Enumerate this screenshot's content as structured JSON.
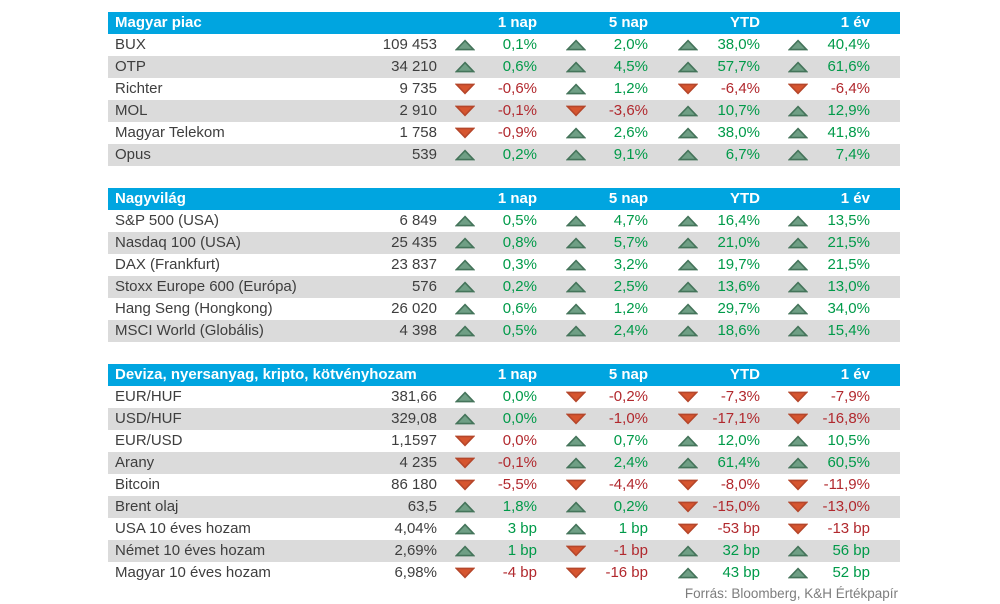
{
  "colors": {
    "header_bg": "#00a5e0",
    "row_alt_bg": "#dbdbdb",
    "text": "#3e3e3e",
    "positive_text": "#009a49",
    "negative_text": "#b1282d",
    "up_triangle_fill": "#6f9f85",
    "up_triangle_stroke": "#44745a",
    "down_triangle_fill": "#d6552f",
    "down_triangle_stroke": "#b5462a",
    "footer_text": "#7d7d7d"
  },
  "icons": {
    "up": "triangle-up",
    "down": "triangle-down"
  },
  "columns": [
    "1 nap",
    "5 nap",
    "YTD",
    "1 év"
  ],
  "chart_data": [
    {
      "type": "table",
      "title": "Magyar piac",
      "columns": [
        "1 nap",
        "5 nap",
        "YTD",
        "1 év"
      ],
      "rows": [
        {
          "name": "BUX",
          "value": "109 453",
          "changes": [
            {
              "dir": "up",
              "text": "0,1%"
            },
            {
              "dir": "up",
              "text": "2,0%"
            },
            {
              "dir": "up",
              "text": "38,0%"
            },
            {
              "dir": "up",
              "text": "40,4%"
            }
          ]
        },
        {
          "name": "OTP",
          "value": "34 210",
          "changes": [
            {
              "dir": "up",
              "text": "0,6%"
            },
            {
              "dir": "up",
              "text": "4,5%"
            },
            {
              "dir": "up",
              "text": "57,7%"
            },
            {
              "dir": "up",
              "text": "61,6%"
            }
          ]
        },
        {
          "name": "Richter",
          "value": "9 735",
          "changes": [
            {
              "dir": "down",
              "text": "-0,6%"
            },
            {
              "dir": "up",
              "text": "1,2%"
            },
            {
              "dir": "down",
              "text": "-6,4%"
            },
            {
              "dir": "down",
              "text": "-6,4%"
            }
          ]
        },
        {
          "name": "MOL",
          "value": "2 910",
          "changes": [
            {
              "dir": "down",
              "text": "-0,1%"
            },
            {
              "dir": "down",
              "text": "-3,6%"
            },
            {
              "dir": "up",
              "text": "10,7%"
            },
            {
              "dir": "up",
              "text": "12,9%"
            }
          ]
        },
        {
          "name": "Magyar Telekom",
          "value": "1 758",
          "changes": [
            {
              "dir": "down",
              "text": "-0,9%"
            },
            {
              "dir": "up",
              "text": "2,6%"
            },
            {
              "dir": "up",
              "text": "38,0%"
            },
            {
              "dir": "up",
              "text": "41,8%"
            }
          ]
        },
        {
          "name": "Opus",
          "value": "539",
          "changes": [
            {
              "dir": "up",
              "text": "0,2%"
            },
            {
              "dir": "up",
              "text": "9,1%"
            },
            {
              "dir": "up",
              "text": "6,7%"
            },
            {
              "dir": "up",
              "text": "7,4%"
            }
          ]
        }
      ]
    },
    {
      "type": "table",
      "title": "Nagyvilág",
      "columns": [
        "1 nap",
        "5 nap",
        "YTD",
        "1 év"
      ],
      "rows": [
        {
          "name": "S&P 500 (USA)",
          "value": "6 849",
          "changes": [
            {
              "dir": "up",
              "text": "0,5%"
            },
            {
              "dir": "up",
              "text": "4,7%"
            },
            {
              "dir": "up",
              "text": "16,4%"
            },
            {
              "dir": "up",
              "text": "13,5%"
            }
          ]
        },
        {
          "name": "Nasdaq 100 (USA)",
          "value": "25 435",
          "changes": [
            {
              "dir": "up",
              "text": "0,8%"
            },
            {
              "dir": "up",
              "text": "5,7%"
            },
            {
              "dir": "up",
              "text": "21,0%"
            },
            {
              "dir": "up",
              "text": "21,5%"
            }
          ]
        },
        {
          "name": "DAX (Frankfurt)",
          "value": "23 837",
          "changes": [
            {
              "dir": "up",
              "text": "0,3%"
            },
            {
              "dir": "up",
              "text": "3,2%"
            },
            {
              "dir": "up",
              "text": "19,7%"
            },
            {
              "dir": "up",
              "text": "21,5%"
            }
          ]
        },
        {
          "name": "Stoxx Europe 600 (Európa)",
          "value": "576",
          "changes": [
            {
              "dir": "up",
              "text": "0,2%"
            },
            {
              "dir": "up",
              "text": "2,5%"
            },
            {
              "dir": "up",
              "text": "13,6%"
            },
            {
              "dir": "up",
              "text": "13,0%"
            }
          ]
        },
        {
          "name": "Hang Seng (Hongkong)",
          "value": "26 020",
          "changes": [
            {
              "dir": "up",
              "text": "0,6%"
            },
            {
              "dir": "up",
              "text": "1,2%"
            },
            {
              "dir": "up",
              "text": "29,7%"
            },
            {
              "dir": "up",
              "text": "34,0%"
            }
          ]
        },
        {
          "name": "MSCI World (Globális)",
          "value": "4 398",
          "changes": [
            {
              "dir": "up",
              "text": "0,5%"
            },
            {
              "dir": "up",
              "text": "2,4%"
            },
            {
              "dir": "up",
              "text": "18,6%"
            },
            {
              "dir": "up",
              "text": "15,4%"
            }
          ]
        }
      ]
    },
    {
      "type": "table",
      "title": "Deviza, nyersanyag, kripto, kötvényhozam",
      "columns": [
        "1 nap",
        "5 nap",
        "YTD",
        "1 év"
      ],
      "rows": [
        {
          "name": "EUR/HUF",
          "value": "381,66",
          "changes": [
            {
              "dir": "up",
              "text": "0,0%"
            },
            {
              "dir": "down",
              "text": "-0,2%"
            },
            {
              "dir": "down",
              "text": "-7,3%"
            },
            {
              "dir": "down",
              "text": "-7,9%"
            }
          ]
        },
        {
          "name": "USD/HUF",
          "value": "329,08",
          "changes": [
            {
              "dir": "up",
              "text": "0,0%"
            },
            {
              "dir": "down",
              "text": "-1,0%"
            },
            {
              "dir": "down",
              "text": "-17,1%"
            },
            {
              "dir": "down",
              "text": "-16,8%"
            }
          ]
        },
        {
          "name": "EUR/USD",
          "value": "1,1597",
          "changes": [
            {
              "dir": "down",
              "text": "0,0%"
            },
            {
              "dir": "up",
              "text": "0,7%"
            },
            {
              "dir": "up",
              "text": "12,0%"
            },
            {
              "dir": "up",
              "text": "10,5%"
            }
          ]
        },
        {
          "name": "Arany",
          "value": "4 235",
          "changes": [
            {
              "dir": "down",
              "text": "-0,1%"
            },
            {
              "dir": "up",
              "text": "2,4%"
            },
            {
              "dir": "up",
              "text": "61,4%"
            },
            {
              "dir": "up",
              "text": "60,5%"
            }
          ]
        },
        {
          "name": "Bitcoin",
          "value": "86 180",
          "changes": [
            {
              "dir": "down",
              "text": "-5,5%"
            },
            {
              "dir": "down",
              "text": "-4,4%"
            },
            {
              "dir": "down",
              "text": "-8,0%"
            },
            {
              "dir": "down",
              "text": "-11,9%"
            }
          ]
        },
        {
          "name": "Brent olaj",
          "value": "63,5",
          "changes": [
            {
              "dir": "up",
              "text": "1,8%"
            },
            {
              "dir": "up",
              "text": "0,2%"
            },
            {
              "dir": "down",
              "text": "-15,0%"
            },
            {
              "dir": "down",
              "text": "-13,0%"
            }
          ]
        },
        {
          "name": "USA 10 éves hozam",
          "value": "4,04%",
          "changes": [
            {
              "dir": "up",
              "text": "3 bp"
            },
            {
              "dir": "up",
              "text": "1 bp"
            },
            {
              "dir": "down",
              "text": "-53 bp"
            },
            {
              "dir": "down",
              "text": "-13 bp"
            }
          ]
        },
        {
          "name": "Német 10 éves hozam",
          "value": "2,69%",
          "changes": [
            {
              "dir": "up",
              "text": "1 bp"
            },
            {
              "dir": "down",
              "text": "-1 bp"
            },
            {
              "dir": "up",
              "text": "32 bp"
            },
            {
              "dir": "up",
              "text": "56 bp"
            }
          ]
        },
        {
          "name": "Magyar 10 éves hozam",
          "value": "6,98%",
          "changes": [
            {
              "dir": "down",
              "text": "-4 bp"
            },
            {
              "dir": "down",
              "text": "-16 bp"
            },
            {
              "dir": "up",
              "text": "43 bp"
            },
            {
              "dir": "up",
              "text": "52 bp"
            }
          ]
        }
      ]
    }
  ],
  "footer": {
    "text": "Forrás: Bloomberg, K&H Értékpapír"
  }
}
